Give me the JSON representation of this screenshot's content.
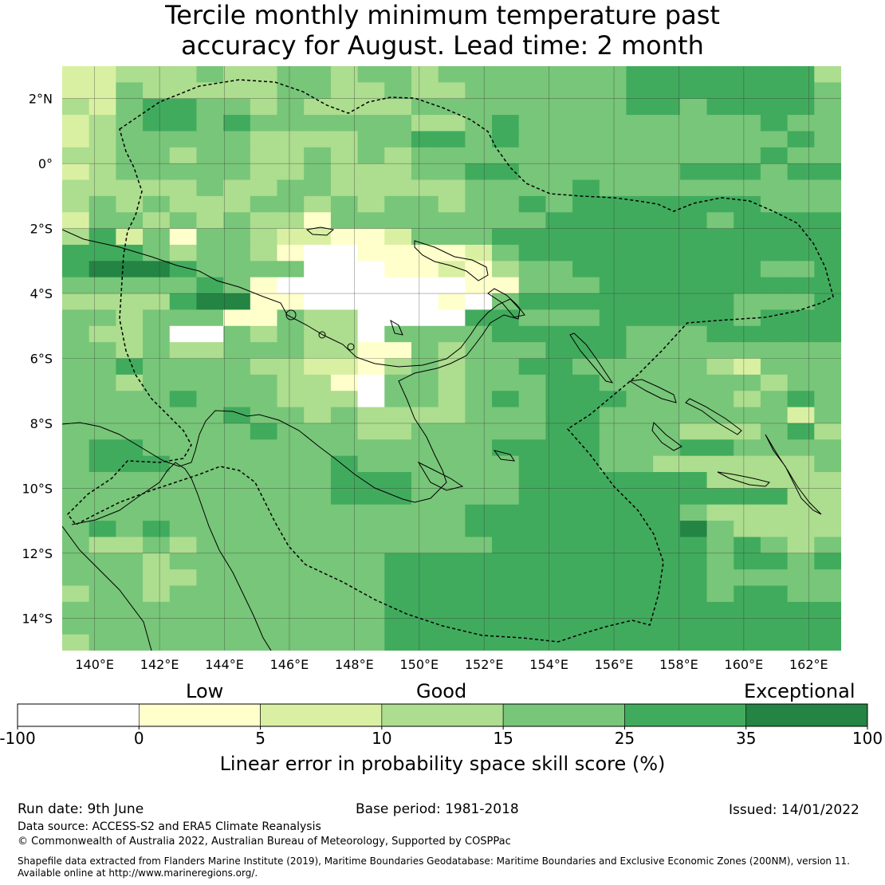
{
  "title": {
    "line1": "Tercile monthly minimum temperature past",
    "line2": "accuracy for August. Lead time: 2 month"
  },
  "map": {
    "lat_labels": [
      "2°N",
      "0°",
      "2°S",
      "4°S",
      "6°S",
      "8°S",
      "10°S",
      "12°S",
      "14°S"
    ],
    "lon_labels": [
      "140°E",
      "142°E",
      "144°E",
      "146°E",
      "148°E",
      "150°E",
      "152°E",
      "154°E",
      "156°E",
      "158°E",
      "160°E",
      "162°E"
    ],
    "extent": {
      "lon_min": 139.0,
      "lon_max": 163.0,
      "lat_min": -15.0,
      "lat_max": 3.0
    }
  },
  "colorbar": {
    "categories": [
      "Low",
      "Good",
      "Exceptional"
    ],
    "ticks": [
      "-100",
      "0",
      "5",
      "10",
      "15",
      "25",
      "35",
      "100"
    ],
    "bins": [
      {
        "range": "-100 to 0",
        "color": "#ffffff"
      },
      {
        "range": "0 to 5",
        "color": "#ffffcc"
      },
      {
        "range": "5 to 10",
        "color": "#d9f0a3"
      },
      {
        "range": "10 to 15",
        "color": "#addd8e"
      },
      {
        "range": "15 to 25",
        "color": "#78c679"
      },
      {
        "range": "25 to 35",
        "color": "#41ab5d"
      },
      {
        "range": "35 to 100",
        "color": "#238443"
      }
    ],
    "label": "Linear error in probability space skill score (%)"
  },
  "footer": {
    "run_date": "Run date: 9th June",
    "base_period": "Base period: 1981-2018",
    "issued": "Issued: 14/01/2022",
    "data_source": "Data source: ACCESS-S2 and ERA5 Climate Reanalysis",
    "copyright": "© Commonwealth of Australia 2022, Australian Bureau of Meteorology, Supported by COSPPac",
    "shapefile_line1": "Shapefile data extracted from Flanders Marine Institute (2019), Maritime Boundaries Geodatabase: Maritime Boundaries and Exclusive Economic Zones (200NM), version 11.",
    "shapefile_line2": "Available online at http://www.marineregions.org/."
  },
  "grid_data": {
    "note_levels": "0=<0, 1=0-5, 2=5-10, 3=10-15, 4=15-25, 5=25-35, 6=35-100",
    "rows": [
      "22333433443443444444455555553",
      "22433333443343344444455555554",
      "32455443433334444444455455554",
      "23455454444443345444444444544",
      "23444443333445545444444444454",
      "33443443343434444444444444544",
      "23444443343334455444444555455",
      "33333433443333344445444444444",
      "34343334434344344545555555444",
      "24434343314444444455555545555",
      "35241443221124445555555555555",
      "55543443100111124555555555555",
      "56665444400011213445555555445",
      "44444541000000011444555555555",
      "33335661100000104555555554445",
      "44344411433000055444555554555",
      "43340043433044445555544455555",
      "44343344433114344455544444444",
      "44544443322134344554444432444",
      "44344444331044344455444444344",
      "44445444333044345455544443454",
      "44444454434333344455444444424",
      "44444445444334444455444333453",
      "45544444444444445555444554444",
      "45554444445444444555443333334",
      "44444444445554444555555533333",
      "44444444445554444555555555533",
      "44444444444444455555555433333",
      "45454444444444455555555643333",
      "43343444444444445555555545434",
      "44434444444455555555555545545",
      "44433444444455555555555544444",
      "34434444444455555555555545544",
      "44444444444455555555555555555",
      "44444444444455555555555555555",
      "34444444444455555555555555555"
    ]
  }
}
